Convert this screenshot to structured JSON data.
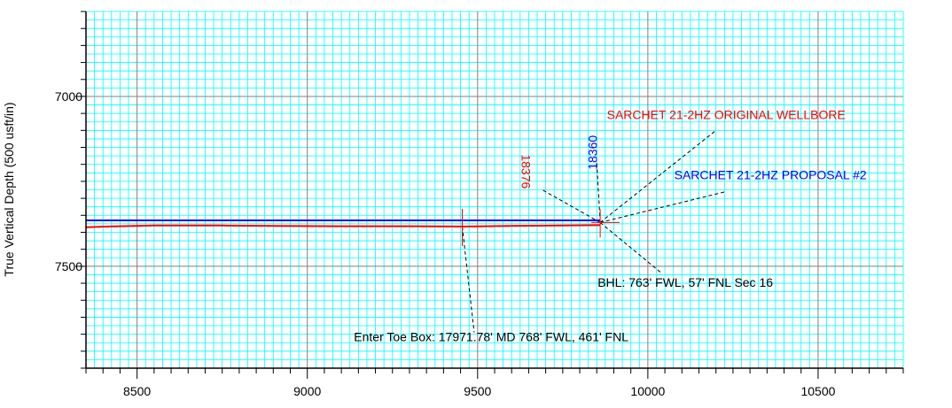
{
  "chart_data": {
    "type": "line",
    "title": "",
    "xlabel": "",
    "ylabel": "True Vertical Depth (500 usft/in)",
    "xlim": [
      8350,
      10750
    ],
    "ylim": [
      6750,
      7800
    ],
    "y_inverted": true,
    "x_ticks": [
      8500,
      9000,
      9500,
      10000,
      10500
    ],
    "y_ticks": [
      7000,
      7500
    ],
    "grid": {
      "major": true,
      "minor": true,
      "minor_color": "#00ffff",
      "major_color": "#808080"
    },
    "series": [
      {
        "name": "SARCHET 21-2HZ ORIGINAL WELLBORE",
        "color": "#ff0000",
        "x": [
          8350,
          8450,
          8550,
          8650,
          8750,
          8900,
          9100,
          9300,
          9455,
          9600,
          9750,
          9860
        ],
        "y": [
          7385,
          7382,
          7380,
          7380,
          7380,
          7381,
          7382,
          7382,
          7383,
          7381,
          7380,
          7379
        ]
      },
      {
        "name": "SARCHET 21-2HZ PROPOSAL #2",
        "color": "#0000ff",
        "x": [
          8350,
          9860
        ],
        "y": [
          7365,
          7365
        ]
      }
    ],
    "annotations": [
      {
        "text": "SARCHET 21-2HZ ORIGINAL WELLBORE",
        "color": "#ff0000",
        "x": 10230,
        "y": 7066
      },
      {
        "text": "SARCHET 21-2HZ PROPOSAL #2",
        "color": "#0000ff",
        "x": 10360,
        "y": 7244
      },
      {
        "text": "18360",
        "color": "#0000ff",
        "x": 9850,
        "y": 7165
      },
      {
        "text": "18376",
        "color": "#ff0000",
        "x": 9630,
        "y": 7221
      },
      {
        "text": "BHL: 763' FWL, 57' FNL Sec 16",
        "color": "#000000",
        "x": 10110,
        "y": 7560
      },
      {
        "text": "Enter Toe Box: 17971.78' MD 768' FWL, 461' FNL",
        "color": "#000000",
        "x": 9540,
        "y": 7720
      }
    ]
  }
}
